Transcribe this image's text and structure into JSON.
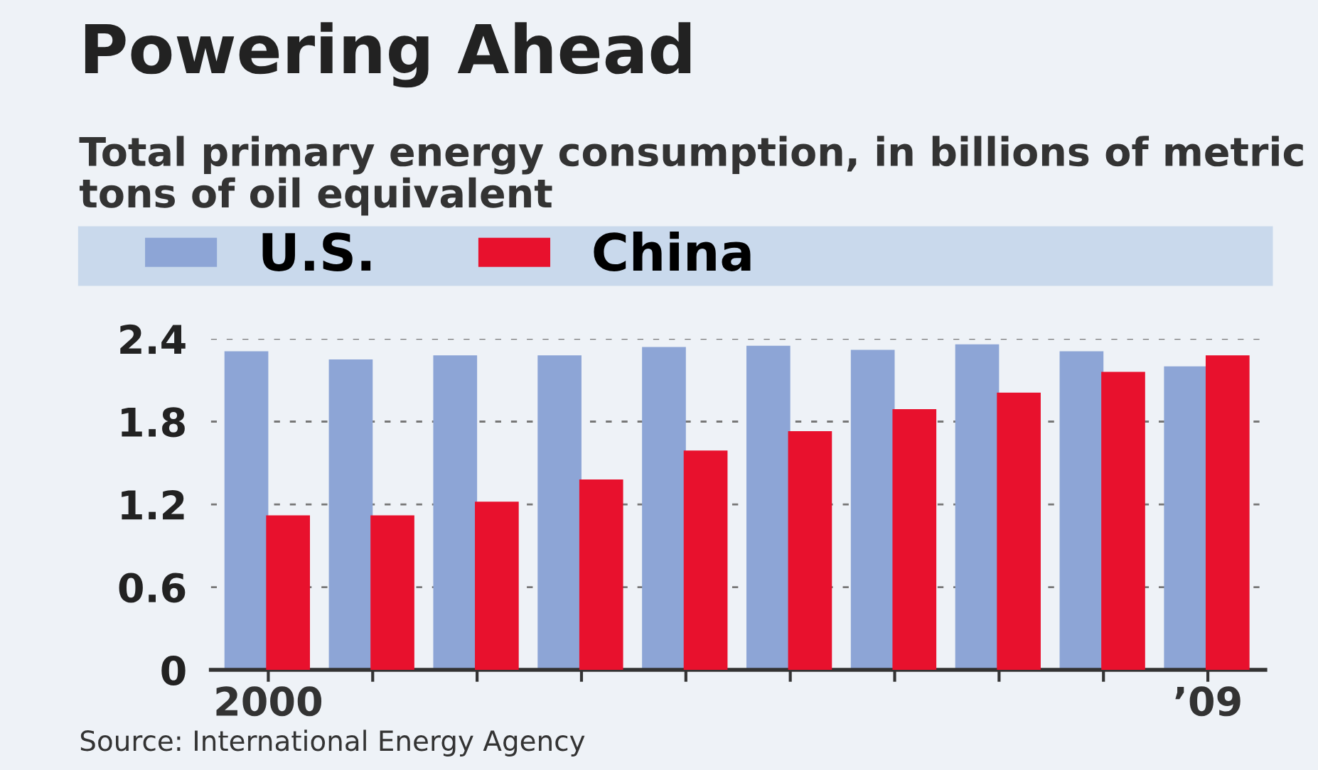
{
  "chart_data": {
    "type": "bar",
    "title": "Powering Ahead",
    "subtitle": "Total primary energy consumption, in billions of metric tons of oil equivalent",
    "categories": [
      "2000",
      null,
      null,
      null,
      null,
      null,
      null,
      null,
      null,
      "’09"
    ],
    "series": [
      {
        "name": "U.S.",
        "color": "#8da5d6",
        "values": [
          2.31,
          2.25,
          2.28,
          2.28,
          2.34,
          2.35,
          2.32,
          2.36,
          2.31,
          2.2
        ]
      },
      {
        "name": "China",
        "color": "#e8112d",
        "values": [
          1.12,
          1.12,
          1.22,
          1.38,
          1.59,
          1.73,
          1.89,
          2.01,
          2.16,
          2.28
        ]
      }
    ],
    "ylim": [
      0,
      2.4
    ],
    "yticks": [
      0,
      0.6,
      1.2,
      1.8,
      2.4
    ],
    "grid": "y",
    "legend": "top",
    "annotations": [
      "Source: International Energy Agency"
    ]
  }
}
